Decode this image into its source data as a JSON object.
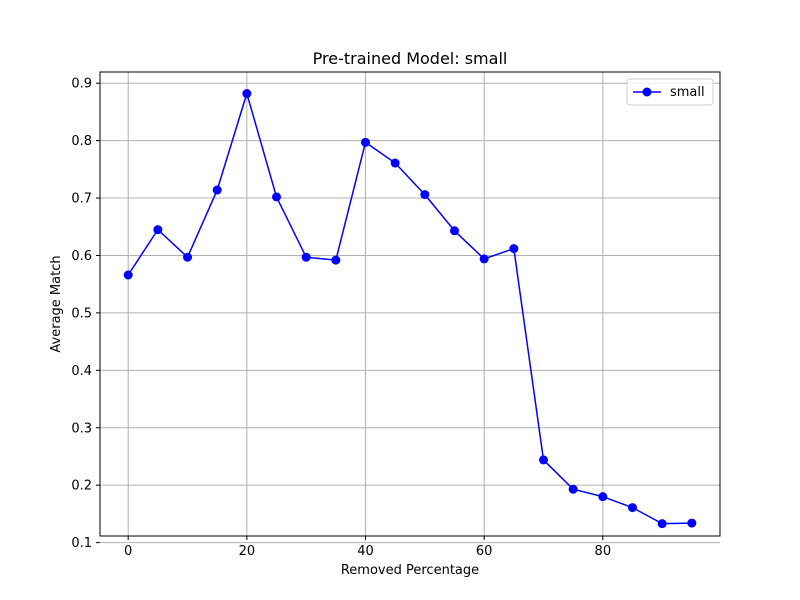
{
  "chart_data": {
    "type": "line",
    "title": "Pre-trained Model: small",
    "xlabel": "Removed Percentage",
    "ylabel": "Average Match",
    "xlim": [
      -4.75,
      99.75
    ],
    "ylim": [
      0.1115,
      0.9195
    ],
    "xticks": [
      0,
      20,
      40,
      60,
      80
    ],
    "yticks": [
      0.1,
      0.2,
      0.3,
      0.4,
      0.5,
      0.6,
      0.7,
      0.8,
      0.9
    ],
    "grid": true,
    "legend_position": "top-right",
    "series": [
      {
        "name": "small",
        "color": "#0000ff",
        "marker": "circle",
        "x": [
          0,
          5,
          10,
          15,
          20,
          25,
          30,
          35,
          40,
          45,
          50,
          55,
          60,
          65,
          70,
          75,
          80,
          85,
          90,
          95
        ],
        "y": [
          0.566,
          0.645,
          0.597,
          0.714,
          0.882,
          0.702,
          0.597,
          0.592,
          0.797,
          0.761,
          0.706,
          0.643,
          0.594,
          0.612,
          0.244,
          0.193,
          0.18,
          0.161,
          0.133,
          0.134
        ]
      }
    ]
  }
}
